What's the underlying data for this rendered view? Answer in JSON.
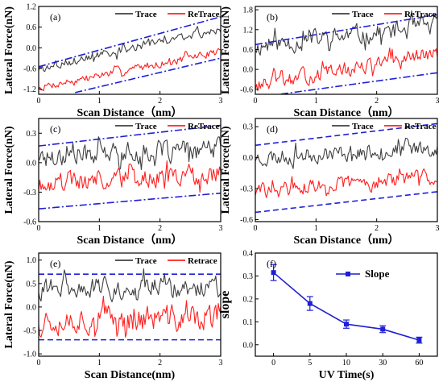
{
  "colors": {
    "trace": "#404040",
    "retrace": "#ff2020",
    "guide": "#1f1fd6",
    "axis": "#000000",
    "slope": "#1f1fd6"
  },
  "chart_data": [
    {
      "id": "a",
      "type": "line",
      "panel_label": "(a)",
      "xlabel": "Scan Distance（nm）",
      "ylabel": "Lateral Force(nN)",
      "xlim": [
        0,
        3
      ],
      "ylim": [
        -1.35,
        1.2
      ],
      "xticks": [
        0,
        1,
        2,
        3
      ],
      "xtick_labels": [
        "0",
        "1",
        "2",
        "3"
      ],
      "yticks": [
        -1.2,
        -0.6,
        0.0,
        0.6,
        1.2
      ],
      "ytick_labels": [
        "-1.2",
        "-0.6",
        "0.0",
        "0.6",
        "1.2"
      ],
      "legend": [
        "Trace",
        "ReTrace"
      ],
      "legend_position": "top-right",
      "grid": false,
      "guide_style": "dashdot",
      "guides": [
        {
          "x": [
            0,
            3
          ],
          "y": [
            -0.55,
            0.9
          ]
        },
        {
          "x": [
            0.6,
            3
          ],
          "y": [
            -1.3,
            -0.3
          ]
        }
      ],
      "series": [
        {
          "name": "Trace",
          "kind": "trace",
          "y0": -0.6,
          "y1": 0.55,
          "amp": 0.22,
          "count": 150,
          "seed": 3
        },
        {
          "name": "ReTrace",
          "kind": "retrace",
          "y0": -1.15,
          "y1": -0.1,
          "amp": 0.18,
          "count": 150,
          "seed": 7
        }
      ]
    },
    {
      "id": "b",
      "type": "line",
      "panel_label": "(b)",
      "xlabel": "Scan Distance（nm）",
      "ylabel": "Lateral Force(nN)",
      "xlim": [
        0,
        3
      ],
      "ylim": [
        -0.75,
        1.9
      ],
      "xticks": [
        0,
        1,
        2,
        3
      ],
      "xtick_labels": [
        "0",
        "1",
        "2",
        "3"
      ],
      "yticks": [
        -0.6,
        0.0,
        0.6,
        1.2,
        1.8
      ],
      "ytick_labels": [
        "-0.6",
        "0.0",
        "0.6",
        "1.2",
        "1.8"
      ],
      "legend": [
        "Trace",
        "ReTrace"
      ],
      "legend_position": "top-right",
      "grid": false,
      "guide_style": "dashdot",
      "guides": [
        {
          "x": [
            0,
            3
          ],
          "y": [
            0.75,
            1.65
          ]
        },
        {
          "x": [
            0.2,
            3
          ],
          "y": [
            -0.8,
            -0.1
          ]
        }
      ],
      "series": [
        {
          "name": "Trace",
          "kind": "trace",
          "y0": 0.7,
          "y1": 1.3,
          "amp": 0.45,
          "count": 150,
          "seed": 11
        },
        {
          "name": "ReTrace",
          "kind": "retrace",
          "y0": -0.5,
          "y1": 0.5,
          "amp": 0.35,
          "count": 150,
          "seed": 13
        }
      ]
    },
    {
      "id": "c",
      "type": "line",
      "panel_label": "(c)",
      "xlabel": "Scan Distance（nm）",
      "ylabel": "Lateral Force(nN)",
      "xlim": [
        0,
        3
      ],
      "ylim": [
        -0.6,
        0.45
      ],
      "xticks": [
        0,
        1,
        2,
        3
      ],
      "xtick_labels": [
        "0",
        "1",
        "2",
        "3"
      ],
      "yticks": [
        -0.6,
        -0.3,
        0.0,
        0.3
      ],
      "ytick_labels": [
        "-0.6",
        "-0.3",
        "0.0",
        "0.3"
      ],
      "legend": [
        "Trace",
        "ReTrace"
      ],
      "legend_position": "top-right",
      "grid": false,
      "guide_style": "dashdot",
      "guides": [
        {
          "x": [
            0,
            3
          ],
          "y": [
            0.17,
            0.38
          ]
        },
        {
          "x": [
            0,
            3
          ],
          "y": [
            -0.47,
            -0.31
          ]
        }
      ],
      "series": [
        {
          "name": "Trace",
          "kind": "trace",
          "y0": 0.07,
          "y1": 0.13,
          "amp": 0.17,
          "count": 150,
          "seed": 17
        },
        {
          "name": "ReTrace",
          "kind": "retrace",
          "y0": -0.2,
          "y1": -0.13,
          "amp": 0.17,
          "count": 150,
          "seed": 19
        }
      ]
    },
    {
      "id": "d",
      "type": "line",
      "panel_label": "(d)",
      "xlabel": "Scan Distance（nm）",
      "ylabel": "Lateral Force(nN)",
      "xlim": [
        0,
        3
      ],
      "ylim": [
        -0.62,
        0.38
      ],
      "xticks": [
        0,
        1,
        2,
        3
      ],
      "xtick_labels": [
        "0",
        "1",
        "2",
        "3"
      ],
      "yticks": [
        -0.6,
        -0.3,
        0.0,
        0.3
      ],
      "ytick_labels": [
        "-0.6",
        "-0.3",
        "0.0",
        "0.3"
      ],
      "legend": [
        "Trace",
        "ReTrace"
      ],
      "legend_position": "top-right",
      "grid": false,
      "guide_style": "dash",
      "guides": [
        {
          "x": [
            0,
            3
          ],
          "y": [
            0.12,
            0.33
          ]
        },
        {
          "x": [
            0,
            3
          ],
          "y": [
            -0.53,
            -0.33
          ]
        }
      ],
      "series": [
        {
          "name": "Trace",
          "kind": "trace",
          "y0": 0.0,
          "y1": 0.1,
          "amp": 0.12,
          "count": 150,
          "seed": 23
        },
        {
          "name": "ReTrace",
          "kind": "retrace",
          "y0": -0.33,
          "y1": -0.18,
          "amp": 0.12,
          "count": 150,
          "seed": 29
        }
      ]
    },
    {
      "id": "e",
      "type": "line",
      "panel_label": "(e)",
      "xlabel": "Scan Distance(nm)",
      "ylabel": "Lateral Force(nN)",
      "xlim": [
        0,
        3
      ],
      "ylim": [
        -1.05,
        1.15
      ],
      "xticks": [
        0,
        1,
        2,
        3
      ],
      "xtick_labels": [
        "0",
        "1",
        "2",
        "3"
      ],
      "yticks": [
        -1.0,
        -0.5,
        0.0,
        0.5,
        1.0
      ],
      "ytick_labels": [
        "-1.0",
        "-0.5",
        "0.0",
        "0.5",
        "1.0"
      ],
      "legend": [
        "Trace",
        "Retrace"
      ],
      "legend_position": "top-right",
      "grid": false,
      "guide_style": "dash",
      "guides": [
        {
          "x": [
            0,
            3
          ],
          "y": [
            0.7,
            0.7
          ]
        },
        {
          "x": [
            0,
            3
          ],
          "y": [
            -0.7,
            -0.7
          ]
        }
      ],
      "series": [
        {
          "name": "Trace",
          "kind": "trace",
          "y0": 0.4,
          "y1": 0.4,
          "amp": 0.35,
          "count": 150,
          "seed": 31
        },
        {
          "name": "Retrace",
          "kind": "retrace",
          "y0": -0.25,
          "y1": -0.25,
          "amp": 0.45,
          "count": 150,
          "seed": 37
        }
      ]
    },
    {
      "id": "f",
      "type": "line",
      "panel_label": "(f)",
      "xlabel": "UV Time(s)",
      "ylabel": "slope",
      "ylim": [
        -0.05,
        0.4
      ],
      "categories": [
        "0",
        "5",
        "10",
        "30",
        "60"
      ],
      "yticks": [
        0.0,
        0.1,
        0.2,
        0.3,
        0.4
      ],
      "ytick_labels": [
        "0.0",
        "0.1",
        "0.2",
        "0.3",
        "0.4"
      ],
      "legend": [
        "Slope"
      ],
      "legend_position": "top-right",
      "grid": false,
      "series": [
        {
          "name": "Slope",
          "values": [
            0.315,
            0.18,
            0.09,
            0.068,
            0.02
          ],
          "errors": [
            0.035,
            0.03,
            0.018,
            0.015,
            0.013
          ]
        }
      ]
    }
  ]
}
